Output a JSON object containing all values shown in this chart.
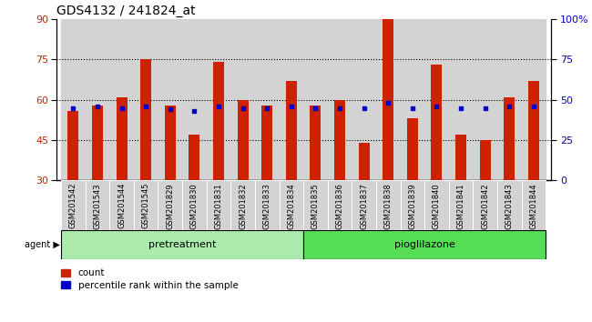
{
  "title": "GDS4132 / 241824_at",
  "samples": [
    "GSM201542",
    "GSM201543",
    "GSM201544",
    "GSM201545",
    "GSM201829",
    "GSM201830",
    "GSM201831",
    "GSM201832",
    "GSM201833",
    "GSM201834",
    "GSM201835",
    "GSM201836",
    "GSM201837",
    "GSM201838",
    "GSM201839",
    "GSM201840",
    "GSM201841",
    "GSM201842",
    "GSM201843",
    "GSM201844"
  ],
  "counts": [
    56,
    58,
    61,
    75,
    58,
    47,
    74,
    60,
    58,
    67,
    58,
    60,
    44,
    90,
    53,
    73,
    47,
    45,
    61,
    67
  ],
  "percentile_ranks": [
    45,
    46,
    45,
    46,
    44,
    43,
    46,
    45,
    45,
    46,
    45,
    45,
    45,
    48,
    45,
    46,
    45,
    45,
    46,
    46
  ],
  "pretreatment_count": 10,
  "group_labels": [
    "pretreatment",
    "pioglilazone"
  ],
  "bar_color": "#cc2200",
  "dot_color": "#0000cc",
  "bar_bottom": 30,
  "ylim_left": [
    30,
    90
  ],
  "ylim_right": [
    0,
    100
  ],
  "yticks_left": [
    30,
    45,
    60,
    75,
    90
  ],
  "yticks_right": [
    0,
    25,
    50,
    75,
    100
  ],
  "grid_values": [
    45,
    60,
    75
  ],
  "pretreatment_color": "#aaeaaa",
  "pioglilazone_color": "#55dd55",
  "agent_label": "agent",
  "legend_count": "count",
  "legend_percentile": "percentile rank within the sample"
}
